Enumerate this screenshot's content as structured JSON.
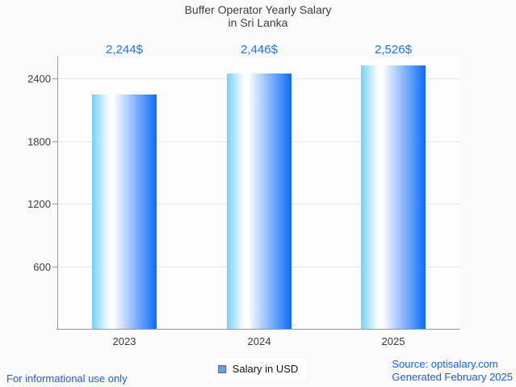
{
  "title": {
    "line1": "Buffer Operator Yearly Salary",
    "line2": "in Sri Lanka"
  },
  "chart_data": {
    "type": "bar",
    "categories": [
      "2023",
      "2024",
      "2025"
    ],
    "series": [
      {
        "name": "Salary in USD",
        "values": [
          2244,
          2446,
          2526
        ]
      }
    ],
    "value_labels": [
      "2,244$",
      "2,446$",
      "2,526$"
    ],
    "title": "Buffer Operator Yearly Salary in Sri Lanka",
    "xlabel": "",
    "ylabel": "",
    "yticks": [
      600,
      1200,
      1800,
      2400
    ],
    "ylim": [
      0,
      2610
    ],
    "grid": true,
    "legend_position": "bottom"
  },
  "legend": {
    "label": "Salary in USD",
    "swatch_color": "#64a0e6"
  },
  "footer": {
    "disclaimer": "For informational use only",
    "source": "Source: optisalary.com",
    "generated": "Generated February 2025"
  },
  "colors": {
    "value_label": "#1e74f0",
    "footer_text": "#1b5fe8",
    "axis": "#979797",
    "gridline": "#e7e7e7",
    "text": "#3d3d3d",
    "bar_gradient": [
      "#76d1fb",
      "#ffffff",
      "#0d6cfa"
    ]
  }
}
